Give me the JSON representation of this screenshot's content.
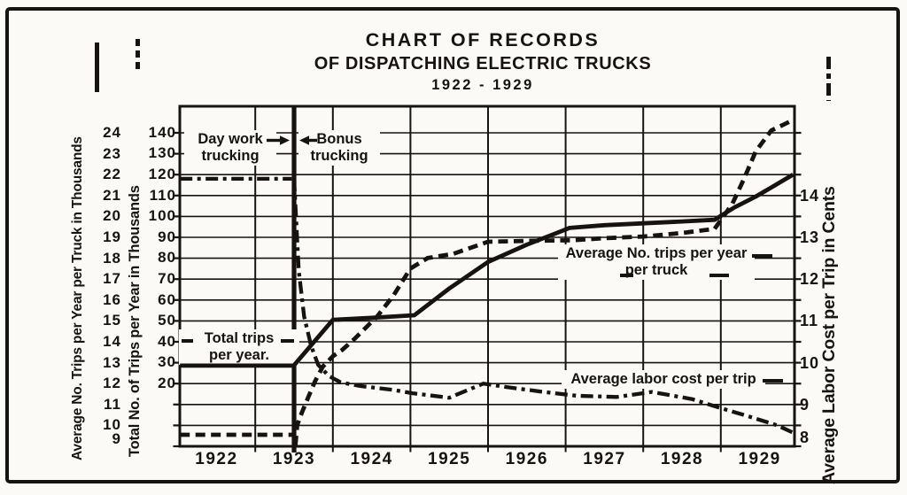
{
  "title": {
    "line1": "CHART OF RECORDS",
    "line2": "OF DISPATCHING ELECTRIC TRUCKS",
    "line3": "1922 - 1929"
  },
  "axes": {
    "left_primary": {
      "legend": "Average No. Trips per Year per Truck in Thousands",
      "line_style": "solid",
      "ticks": [
        24,
        23,
        22,
        21,
        20,
        19,
        18,
        17,
        16,
        15,
        14,
        13,
        12,
        11,
        10,
        9
      ]
    },
    "left_secondary": {
      "legend": "Total No. of Trips per Year in Thousands",
      "line_style": "dashed",
      "ticks": [
        140,
        130,
        120,
        110,
        100,
        90,
        80,
        70,
        60,
        50,
        40,
        30,
        20
      ]
    },
    "right": {
      "legend": "Average Labor Cost per Trip in Cents",
      "line_style": "dash-dot",
      "ticks": [
        14,
        13,
        12,
        11,
        10,
        9,
        8
      ]
    },
    "x": {
      "years": [
        "1922",
        "1923",
        "1924",
        "1925",
        "1926",
        "1927",
        "1928",
        "1929"
      ]
    }
  },
  "annotations": {
    "day_work": {
      "line1": "Day work",
      "line2": "trucking",
      "arrow_icon": "right-arrow"
    },
    "bonus": {
      "line1": "Bonus",
      "line2": "trucking",
      "arrow_icon": "left-arrow"
    },
    "total_trips": {
      "line1": "Total trips",
      "line2": "per year."
    },
    "avg_trips": {
      "line1": "Average No. trips per year",
      "line2": "per truck"
    },
    "labor_cost": {
      "text": "Average labor cost per trip"
    }
  },
  "ink_color": "#161310",
  "paper_color": "#fbfaf6",
  "chart_data": {
    "type": "line",
    "title": "Chart of Records of Dispatching Electric Trucks 1922-1929",
    "grid": "on",
    "x_range": [
      1921.53,
      1929.45
    ],
    "x_year_labels": [
      1922,
      1923,
      1924,
      1925,
      1926,
      1927,
      1928,
      1929
    ],
    "x_gridlines": [
      1922.5,
      1923.5,
      1924.5,
      1925.5,
      1926.5,
      1927.5,
      1928.5
    ],
    "heavy_divider_year": 1923,
    "y_axes": {
      "left_primary": {
        "label": "Average No. Trips per Year per Truck in Thousands",
        "range": [
          9,
          24
        ],
        "tick_step": 1
      },
      "left_secondary": {
        "label": "Total No. of Trips per Year in Thousands",
        "range": [
          20,
          140
        ],
        "tick_step": 10
      },
      "right": {
        "label": "Average Labor Cost per Trip in Cents",
        "range": [
          8,
          14
        ],
        "tick_step": 1
      }
    },
    "series": [
      {
        "id": "total-trips-day-work",
        "name": "Total trips per year (day work trucking)",
        "axis": "left_secondary",
        "style": "solid",
        "points": [
          [
            1921.53,
            28.5
          ],
          [
            1923.02,
            28.5
          ]
        ]
      },
      {
        "id": "avg-trips-day-work",
        "name": "Average No. trips per year per truck (day work trucking)",
        "axis": "left_primary",
        "style": "dashed",
        "points": [
          [
            1921.53,
            9.55
          ],
          [
            1923.0,
            9.55
          ]
        ]
      },
      {
        "id": "labor-cost-day-work",
        "name": "Average labor cost per trip (day work trucking)",
        "axis": "right",
        "style": "dash-dot",
        "points": [
          [
            1921.53,
            14.4
          ],
          [
            1922.97,
            14.4
          ]
        ]
      },
      {
        "id": "avg-trips-bonus",
        "name": "Average No. trips per year per truck (bonus trucking)",
        "axis": "left_primary",
        "style": "solid",
        "points": [
          [
            1923.0,
            12.88
          ],
          [
            1923.5,
            15.05
          ],
          [
            1924.0,
            15.15
          ],
          [
            1924.55,
            15.27
          ],
          [
            1925.0,
            16.55
          ],
          [
            1925.5,
            17.82
          ],
          [
            1926.0,
            18.65
          ],
          [
            1926.55,
            19.45
          ],
          [
            1927.0,
            19.58
          ],
          [
            1927.5,
            19.67
          ],
          [
            1928.0,
            19.76
          ],
          [
            1928.42,
            19.84
          ],
          [
            1928.67,
            20.42
          ],
          [
            1928.95,
            20.95
          ],
          [
            1929.18,
            21.45
          ],
          [
            1929.43,
            22.0
          ]
        ]
      },
      {
        "id": "total-trips-bonus",
        "name": "Total trips per year (bonus trucking)",
        "axis": "left_secondary",
        "style": "dashed",
        "start_at_bottom": true,
        "points": [
          [
            1923.04,
            0
          ],
          [
            1923.1,
            6
          ],
          [
            1923.19,
            14
          ],
          [
            1923.27,
            21
          ],
          [
            1923.37,
            28
          ],
          [
            1923.5,
            33
          ],
          [
            1923.62,
            36
          ],
          [
            1923.77,
            41
          ],
          [
            1924.07,
            52
          ],
          [
            1924.28,
            62
          ],
          [
            1924.5,
            75
          ],
          [
            1924.72,
            80
          ],
          [
            1925.05,
            82
          ],
          [
            1925.5,
            87.8
          ],
          [
            1926.0,
            88.2
          ],
          [
            1926.6,
            88.5
          ],
          [
            1927.0,
            89.5
          ],
          [
            1927.5,
            90.3
          ],
          [
            1928.0,
            92
          ],
          [
            1928.42,
            94
          ],
          [
            1928.65,
            106
          ],
          [
            1928.8,
            118
          ],
          [
            1928.95,
            131
          ],
          [
            1929.15,
            141
          ],
          [
            1929.43,
            146
          ]
        ]
      },
      {
        "id": "labor-cost-bonus",
        "name": "Average labor cost per trip (bonus trucking)",
        "axis": "right",
        "style": "dash-dot",
        "points": [
          [
            1923.0,
            14.4
          ],
          [
            1923.06,
            12.2
          ],
          [
            1923.13,
            11.1
          ],
          [
            1923.22,
            10.4
          ],
          [
            1923.31,
            9.95
          ],
          [
            1923.45,
            9.68
          ],
          [
            1923.6,
            9.53
          ],
          [
            1923.86,
            9.44
          ],
          [
            1924.28,
            9.35
          ],
          [
            1924.53,
            9.27
          ],
          [
            1925.0,
            9.16
          ],
          [
            1925.44,
            9.5
          ],
          [
            1925.73,
            9.42
          ],
          [
            1926.18,
            9.31
          ],
          [
            1926.64,
            9.21
          ],
          [
            1927.16,
            9.18
          ],
          [
            1927.61,
            9.3
          ],
          [
            1928.13,
            9.13
          ],
          [
            1928.47,
            8.93
          ],
          [
            1928.85,
            8.72
          ],
          [
            1929.23,
            8.5
          ],
          [
            1929.46,
            8.3
          ]
        ]
      }
    ]
  }
}
